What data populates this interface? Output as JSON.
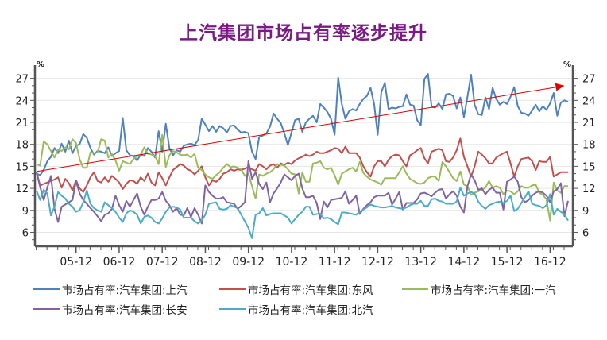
{
  "chart_data": {
    "type": "line",
    "title": "上汽集团市场占有率逐步提升",
    "unit_left": "%",
    "unit_right": "%",
    "x_start": "2005-01",
    "x_interval": "month",
    "xticks": [
      {
        "label": "05-12",
        "index": 11
      },
      {
        "label": "06-12",
        "index": 23
      },
      {
        "label": "07-12",
        "index": 35
      },
      {
        "label": "08-12",
        "index": 47
      },
      {
        "label": "09-12",
        "index": 59
      },
      {
        "label": "10-12",
        "index": 71
      },
      {
        "label": "11-12",
        "index": 83
      },
      {
        "label": "12-12",
        "index": 95
      },
      {
        "label": "13-12",
        "index": 107
      },
      {
        "label": "14-12",
        "index": 119
      },
      {
        "label": "15-12",
        "index": 131
      },
      {
        "label": "16-12",
        "index": 143
      }
    ],
    "yticks": [
      6,
      9,
      12,
      15,
      18,
      21,
      24,
      27
    ],
    "ylim": [
      4.1,
      28.8
    ],
    "grid": true,
    "legend_position": "bottom",
    "trend_arrow": {
      "from": [
        0,
        14.3
      ],
      "to": [
        147,
        26.0
      ],
      "color": "#e00000"
    },
    "series": [
      {
        "name": "市场占有率:汽车集团:上汽",
        "color": "#4f81bd",
        "values": [
          14.0,
          13.8,
          14.5,
          15.7,
          16.3,
          17.5,
          16.8,
          18.1,
          17.0,
          18.5,
          16.8,
          17.8,
          18.0,
          19.4,
          18.9,
          17.5,
          16.6,
          17.1,
          17.0,
          16.8,
          17.6,
          16.4,
          16.8,
          17.1,
          21.6,
          17.2,
          16.5,
          16.4,
          15.8,
          16.6,
          16.4,
          17.5,
          17.0,
          16.2,
          19.8,
          17.0,
          20.8,
          17.5,
          16.5,
          17.2,
          17.0,
          17.8,
          18.0,
          18.1,
          17.9,
          18.6,
          21.5,
          20.7,
          19.8,
          20.5,
          19.7,
          20.5,
          20.2,
          19.6,
          20.5,
          20.6,
          20.0,
          19.6,
          19.7,
          19.5,
          17.0,
          16.0,
          19.0,
          19.2,
          19.5,
          20.4,
          22.2,
          21.5,
          20.9,
          19.5,
          17.9,
          19.6,
          21.3,
          21.5,
          19.7,
          21.0,
          21.5,
          21.9,
          21.0,
          23.5,
          23.0,
          22.4,
          21.5,
          19.3,
          27.1,
          23.5,
          21.5,
          22.5,
          22.8,
          22.6,
          23.5,
          24.2,
          24.6,
          25.7,
          23.5,
          19.3,
          25.1,
          26.4,
          22.8,
          23.0,
          22.9,
          23.1,
          23.2,
          24.8,
          23.4,
          23.3,
          21.3,
          20.6,
          26.9,
          27.6,
          23.1,
          23.0,
          23.6,
          22.8,
          24.8,
          24.9,
          24.6,
          22.9,
          24.4,
          21.7,
          24.5,
          27.5,
          23.4,
          22.1,
          22.0,
          24.4,
          22.8,
          25.7,
          24.2,
          23.4,
          23.8,
          23.5,
          24.5,
          25.8,
          23.2,
          22.3,
          22.2,
          21.9,
          22.6,
          23.4,
          22.5,
          23.2,
          22.7,
          23.6,
          25.0,
          21.9,
          23.7,
          24.0,
          23.8
        ]
      },
      {
        "name": "市场占有率:汽车集团:东风",
        "color": "#c0504d",
        "values": [
          14.2,
          12.4,
          12.6,
          12.8,
          13.0,
          13.2,
          13.5,
          12.1,
          13.3,
          12.7,
          11.7,
          13.1,
          12.0,
          11.5,
          12.4,
          13.5,
          14.2,
          13.0,
          12.8,
          13.5,
          12.9,
          13.7,
          13.3,
          12.8,
          11.9,
          12.6,
          13.1,
          13.0,
          12.6,
          13.5,
          13.0,
          14.0,
          12.8,
          12.4,
          14.2,
          13.4,
          12.4,
          13.5,
          14.5,
          14.9,
          15.3,
          15.1,
          14.6,
          14.4,
          13.9,
          14.4,
          15.0,
          13.5,
          12.4,
          13.1,
          12.9,
          13.3,
          14.0,
          14.2,
          14.6,
          14.4,
          14.6,
          14.5,
          14.7,
          14.9,
          14.6,
          14.4,
          15.3,
          15.0,
          14.6,
          15.1,
          15.3,
          14.8,
          15.4,
          15.2,
          15.5,
          15.3,
          15.8,
          16.1,
          16.3,
          16.6,
          16.4,
          16.6,
          17.0,
          16.8,
          16.8,
          17.0,
          17.2,
          17.5,
          17.4,
          16.8,
          17.7,
          16.8,
          16.8,
          16.8,
          16.2,
          15.0,
          14.2,
          13.6,
          15.0,
          15.7,
          15.7,
          15.0,
          15.9,
          16.4,
          16.6,
          16.5,
          15.7,
          15.0,
          16.5,
          16.8,
          17.2,
          17.5,
          16.1,
          15.4,
          17.0,
          17.2,
          17.4,
          17.2,
          15.7,
          15.6,
          16.2,
          17.2,
          18.8,
          16.3,
          15.0,
          13.6,
          15.0,
          17.0,
          16.6,
          16.1,
          15.4,
          15.4,
          16.2,
          16.5,
          16.8,
          17.0,
          15.4,
          13.6,
          15.0,
          16.0,
          16.1,
          16.2,
          15.7,
          14.5,
          15.7,
          15.6,
          15.6,
          16.3,
          13.6,
          13.9,
          14.2,
          14.2,
          14.2
        ]
      },
      {
        "name": "市场占有率:汽车集团:一汽",
        "color": "#9bbb59",
        "values": [
          15.3,
          15.1,
          18.4,
          18.0,
          17.1,
          16.2,
          17.3,
          17.1,
          17.6,
          17.3,
          18.7,
          18.2,
          16.0,
          14.8,
          14.8,
          16.9,
          16.8,
          16.9,
          18.7,
          18.5,
          16.2,
          16.7,
          15.8,
          14.4,
          15.7,
          15.5,
          15.3,
          16.0,
          16.4,
          16.6,
          17.6,
          16.7,
          16.6,
          16.4,
          15.3,
          19.3,
          14.9,
          16.5,
          17.1,
          16.9,
          16.6,
          16.5,
          16.6,
          16.2,
          16.7,
          14.8,
          14.5,
          13.9,
          13.5,
          13.3,
          13.8,
          14.2,
          14.8,
          15.3,
          14.9,
          15.0,
          14.8,
          14.6,
          13.7,
          14.0,
          12.3,
          10.6,
          13.9,
          13.7,
          14.0,
          14.2,
          14.6,
          15.3,
          15.2,
          15.1,
          14.6,
          14.0,
          13.9,
          11.3,
          14.2,
          12.9,
          12.9,
          15.4,
          15.5,
          15.7,
          14.8,
          14.6,
          14.8,
          13.8,
          12.5,
          14.0,
          14.3,
          14.6,
          14.8,
          14.3,
          15.6,
          14.1,
          13.6,
          13.2,
          13.0,
          12.8,
          12.5,
          13.4,
          13.4,
          13.4,
          13.4,
          14.2,
          15.0,
          14.0,
          13.3,
          13.0,
          12.7,
          12.6,
          12.8,
          13.4,
          13.6,
          13.6,
          13.0,
          15.6,
          15.0,
          14.2,
          13.4,
          13.0,
          14.3,
          12.5,
          12.3,
          11.1,
          11.4,
          11.6,
          11.8,
          12.1,
          13.0,
          12.1,
          12.3,
          12.1,
          11.2,
          11.7,
          11.6,
          11.2,
          11.6,
          12.3,
          12.1,
          12.1,
          12.4,
          12.5,
          11.4,
          11.1,
          10.5,
          7.6,
          12.8,
          11.7,
          11.4,
          12.3,
          12.3
        ]
      },
      {
        "name": "市场占有率:汽车集团:长安",
        "color": "#8064a2",
        "values": [
          14.2,
          12.2,
          10.4,
          12.1,
          13.7,
          9.2,
          7.4,
          9.5,
          9.8,
          10.1,
          10.4,
          13.0,
          11.3,
          10.4,
          9.9,
          9.3,
          8.8,
          8.2,
          7.5,
          8.4,
          8.6,
          9.2,
          11.0,
          9.7,
          8.8,
          10.3,
          9.5,
          10.4,
          11.3,
          9.5,
          8.4,
          9.5,
          10.4,
          10.4,
          10.6,
          11.5,
          10.3,
          9.7,
          8.8,
          9.3,
          8.4,
          8.3,
          9.3,
          8.1,
          9.3,
          8.4,
          7.2,
          12.4,
          11.5,
          11.0,
          10.6,
          10.6,
          10.8,
          10.1,
          10.0,
          9.9,
          9.2,
          9.6,
          10.1,
          15.7,
          13.3,
          14.2,
          12.6,
          11.9,
          12.8,
          10.1,
          11.3,
          12.0,
          12.8,
          13.9,
          13.5,
          13.1,
          13.7,
          14.0,
          12.0,
          10.8,
          10.8,
          11.0,
          10.0,
          7.8,
          10.2,
          9.4,
          10.4,
          10.5,
          10.6,
          10.7,
          11.6,
          9.9,
          10.4,
          11.0,
          8.5,
          9.2,
          9.7,
          10.1,
          10.8,
          11.0,
          11.0,
          11.0,
          11.4,
          9.8,
          10.6,
          11.5,
          9.1,
          10.0,
          10.0,
          10.0,
          10.5,
          11.3,
          11.4,
          11.2,
          10.9,
          11.4,
          11.8,
          11.9,
          10.6,
          11.2,
          11.6,
          11.0,
          9.5,
          8.7,
          12.3,
          13.9,
          13.1,
          11.8,
          12.0,
          11.2,
          11.8,
          12.1,
          11.4,
          11.4,
          9.1,
          12.9,
          13.2,
          13.6,
          12.9,
          10.8,
          10.1,
          10.4,
          11.0,
          11.4,
          11.6,
          11.4,
          11.0,
          10.1,
          11.6,
          11.9,
          12.7,
          8.2,
          10.3
        ]
      },
      {
        "name": "市场占有率:汽车集团:北汽",
        "color": "#4bacc6",
        "values": [
          11.7,
          10.4,
          11.8,
          11.3,
          8.3,
          9.5,
          11.5,
          11.0,
          10.6,
          9.9,
          9.5,
          8.8,
          9.0,
          10.1,
          11.7,
          9.9,
          9.3,
          9.0,
          8.8,
          10.1,
          9.7,
          9.3,
          8.8,
          8.0,
          7.4,
          8.6,
          9.0,
          8.8,
          8.4,
          7.2,
          8.1,
          8.3,
          8.0,
          7.4,
          7.2,
          7.9,
          8.8,
          9.4,
          9.5,
          9.4,
          9.1,
          8.0,
          8.0,
          8.0,
          7.5,
          7.2,
          7.6,
          8.4,
          9.9,
          10.0,
          10.1,
          9.2,
          9.1,
          9.2,
          9.7,
          9.5,
          9.3,
          8.4,
          7.5,
          6.6,
          5.2,
          8.4,
          8.6,
          9.3,
          8.3,
          8.5,
          8.6,
          8.6,
          8.6,
          8.3,
          8.0,
          7.2,
          7.8,
          8.4,
          8.8,
          9.5,
          9.5,
          8.4,
          8.5,
          8.5,
          7.9,
          8.0,
          7.8,
          7.4,
          7.1,
          8.7,
          8.7,
          8.6,
          8.5,
          8.4,
          8.8,
          9.1,
          9.4,
          9.8,
          9.6,
          9.5,
          9.4,
          9.4,
          9.5,
          9.6,
          9.4,
          9.3,
          9.2,
          9.4,
          9.7,
          9.9,
          9.9,
          10.3,
          9.6,
          9.6,
          10.5,
          10.6,
          10.3,
          10.2,
          9.9,
          9.9,
          9.9,
          10.2,
          12.1,
          11.0,
          11.3,
          11.5,
          11.3,
          10.2,
          9.6,
          9.2,
          9.7,
          9.9,
          10.1,
          10.2,
          10.0,
          10.3,
          11.0,
          8.9,
          9.2,
          10.0,
          10.8,
          11.6,
          9.9,
          9.7,
          9.6,
          9.3,
          9.7,
          11.2,
          8.4,
          9.2,
          8.8,
          8.5,
          7.6
        ]
      }
    ]
  }
}
